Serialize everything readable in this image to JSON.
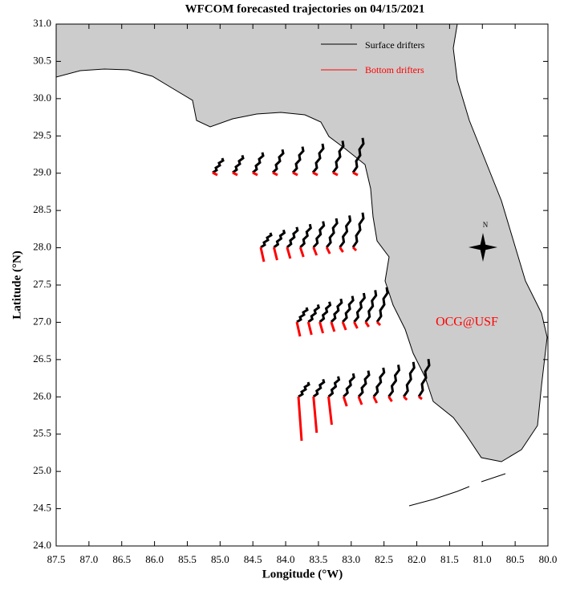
{
  "chart_data": {
    "type": "map",
    "title": "WFCOM forecasted trajectories on 04/15/2021",
    "xlabel": "Longitude (°W)",
    "ylabel": "Latitude (°N)",
    "xlim": [
      87.5,
      80.0
    ],
    "ylim": [
      24.0,
      31.0
    ],
    "xticks": [
      87.5,
      {
        "value": 87,
        "label": "87.0"
      },
      86.5,
      {
        "value": 86,
        "label": "86.0"
      },
      85.5,
      {
        "value": 85,
        "label": "85.0"
      },
      84.5,
      {
        "value": 84,
        "label": "84.0"
      },
      83.5,
      {
        "value": 83,
        "label": "83.0"
      },
      82.5,
      {
        "value": 82,
        "label": "82.0"
      },
      81.5,
      {
        "value": 81,
        "label": "81.0"
      },
      80.5,
      {
        "value": 80,
        "label": "80.0"
      }
    ],
    "yticks": [
      {
        "value": 24,
        "label": "24.0"
      },
      24.5,
      {
        "value": 25,
        "label": "25.0"
      },
      25.5,
      {
        "value": 26,
        "label": "26.0"
      },
      26.5,
      {
        "value": 27,
        "label": "27.0"
      },
      27.5,
      {
        "value": 28,
        "label": "28.0"
      },
      28.5,
      {
        "value": 29,
        "label": "29.0"
      },
      29.5,
      {
        "value": 30,
        "label": "30.0"
      },
      30.5,
      {
        "value": 31,
        "label": "31.0"
      }
    ],
    "series": [
      {
        "name": "Surface drifters",
        "color": "#000000"
      },
      {
        "name": "Bottom drifters",
        "color": "#ff0000"
      }
    ],
    "annotations": [
      "OCG@USF",
      "N"
    ]
  }
}
